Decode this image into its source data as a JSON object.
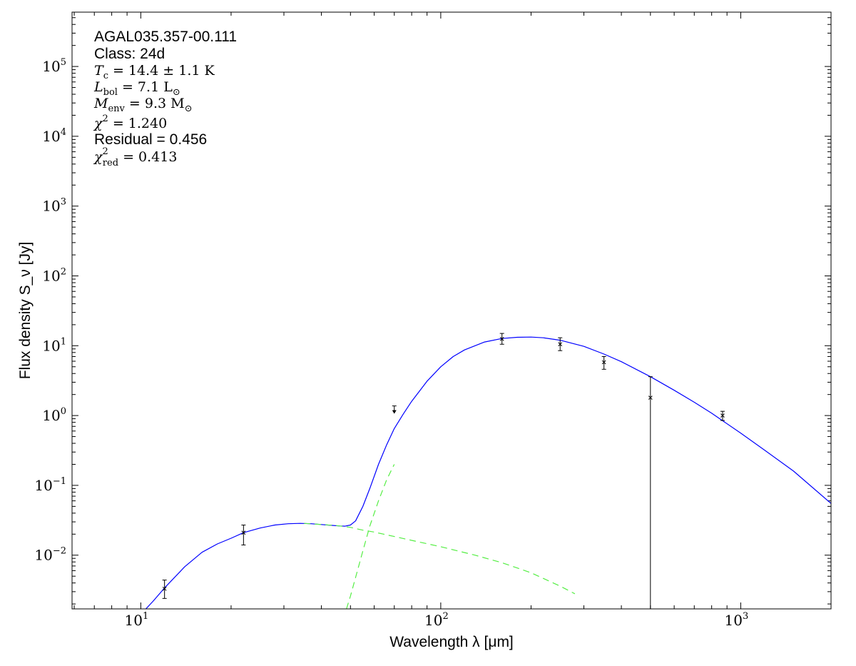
{
  "chart_data": {
    "type": "scatter",
    "xlabel": "Wavelength λ [μm]",
    "ylabel": "Flux density S_ν [Jy]",
    "x_scale": "log",
    "y_scale": "log",
    "xlim": [
      5.9,
      2000
    ],
    "ylim": [
      0.0017,
      600000
    ],
    "x_ticks": [
      {
        "value": 10,
        "base": "10",
        "exp": "1"
      },
      {
        "value": 100,
        "base": "10",
        "exp": "2"
      },
      {
        "value": 1000,
        "base": "10",
        "exp": "3"
      }
    ],
    "y_ticks": [
      {
        "value": 0.01,
        "base": "10",
        "exp": "−2"
      },
      {
        "value": 0.1,
        "base": "10",
        "exp": "−1"
      },
      {
        "value": 1,
        "base": "10",
        "exp": "0"
      },
      {
        "value": 10,
        "base": "10",
        "exp": "1"
      },
      {
        "value": 100,
        "base": "10",
        "exp": "2"
      },
      {
        "value": 1000,
        "base": "10",
        "exp": "3"
      },
      {
        "value": 10000,
        "base": "10",
        "exp": "4"
      },
      {
        "value": 100000,
        "base": "10",
        "exp": "5"
      }
    ],
    "annotations": {
      "source_name": "AGAL035.357-00.111",
      "class_label": "Class: 24d",
      "tc": {
        "sym": "T",
        "sub": "c",
        "rest": " = 14.4 ± 1.1 K"
      },
      "lbol": {
        "sym": "L",
        "sub": "bol",
        "rest": " = 7.1 L",
        "rest_sub": "⊙"
      },
      "menv": {
        "sym": "M",
        "sub": "env",
        "rest": " = 9.3 M",
        "rest_sub": "⊙"
      },
      "chi2": {
        "sym": "χ",
        "sup": "2",
        "rest": " = 1.240"
      },
      "residual": "Residual = 0.456",
      "chi2red": {
        "sym": "χ",
        "sup": "2",
        "sub": "red",
        "rest": " = 0.413"
      }
    },
    "colors": {
      "model": "#0000ff",
      "components": "#55ee44",
      "data": "#000000"
    },
    "measurements": [
      {
        "x": 12,
        "y": 0.0033,
        "err_low": 0.0024,
        "err_high": 0.0044,
        "upper_limit": false
      },
      {
        "x": 22,
        "y": 0.021,
        "err_low": 0.014,
        "err_high": 0.027,
        "upper_limit": false
      },
      {
        "x": 70,
        "y": 1.25,
        "upper_limit": true
      },
      {
        "x": 160,
        "y": 12.5,
        "err_low": 10.5,
        "err_high": 15.0,
        "upper_limit": false
      },
      {
        "x": 250,
        "y": 10.5,
        "err_low": 8.5,
        "err_high": 13.0,
        "upper_limit": false
      },
      {
        "x": 350,
        "y": 5.8,
        "err_low": 4.6,
        "err_high": 7.0,
        "upper_limit": false
      },
      {
        "x": 500,
        "y": 1.8,
        "err_low": 0.0017,
        "err_high": 3.6,
        "upper_limit": false
      },
      {
        "x": 870,
        "y": 1.0,
        "err_low": 0.85,
        "err_high": 1.15,
        "upper_limit": false
      }
    ],
    "series": [
      {
        "line_style": "solid",
        "x": [
          10.4,
          11,
          12,
          14,
          16,
          18,
          20,
          22,
          25,
          28,
          31,
          34,
          37,
          40,
          43,
          46,
          48,
          50,
          52,
          55,
          58,
          62,
          66,
          70,
          75,
          80,
          90,
          100,
          110,
          120,
          140,
          160,
          180,
          200,
          220,
          250,
          300,
          350,
          400,
          500,
          600,
          700,
          800,
          1000,
          1200,
          1500,
          2000
        ],
        "y": [
          0.0017,
          0.0022,
          0.0034,
          0.0068,
          0.011,
          0.0145,
          0.0175,
          0.021,
          0.0245,
          0.027,
          0.0282,
          0.0285,
          0.0282,
          0.0275,
          0.0268,
          0.0262,
          0.026,
          0.027,
          0.031,
          0.05,
          0.09,
          0.2,
          0.38,
          0.65,
          1.05,
          1.6,
          3.1,
          5.0,
          7.0,
          8.7,
          11.3,
          12.7,
          13.2,
          13.3,
          13.0,
          12.0,
          9.8,
          7.6,
          5.9,
          3.6,
          2.3,
          1.55,
          1.08,
          0.56,
          0.32,
          0.16,
          0.055
        ]
      },
      {
        "line_style": "dashed",
        "x": [
          35,
          40,
          45,
          50,
          55,
          60,
          70,
          80,
          100,
          130,
          160,
          200,
          250,
          280
        ],
        "y": [
          0.0285,
          0.0275,
          0.0265,
          0.025,
          0.0228,
          0.0214,
          0.0185,
          0.0163,
          0.0132,
          0.01,
          0.0078,
          0.0056,
          0.0036,
          0.0028
        ]
      },
      {
        "line_style": "dashed",
        "x": [
          48.5,
          50,
          52,
          55,
          58,
          62,
          66,
          70
        ],
        "y": [
          0.0017,
          0.0026,
          0.0048,
          0.0115,
          0.026,
          0.06,
          0.12,
          0.2
        ]
      }
    ]
  }
}
